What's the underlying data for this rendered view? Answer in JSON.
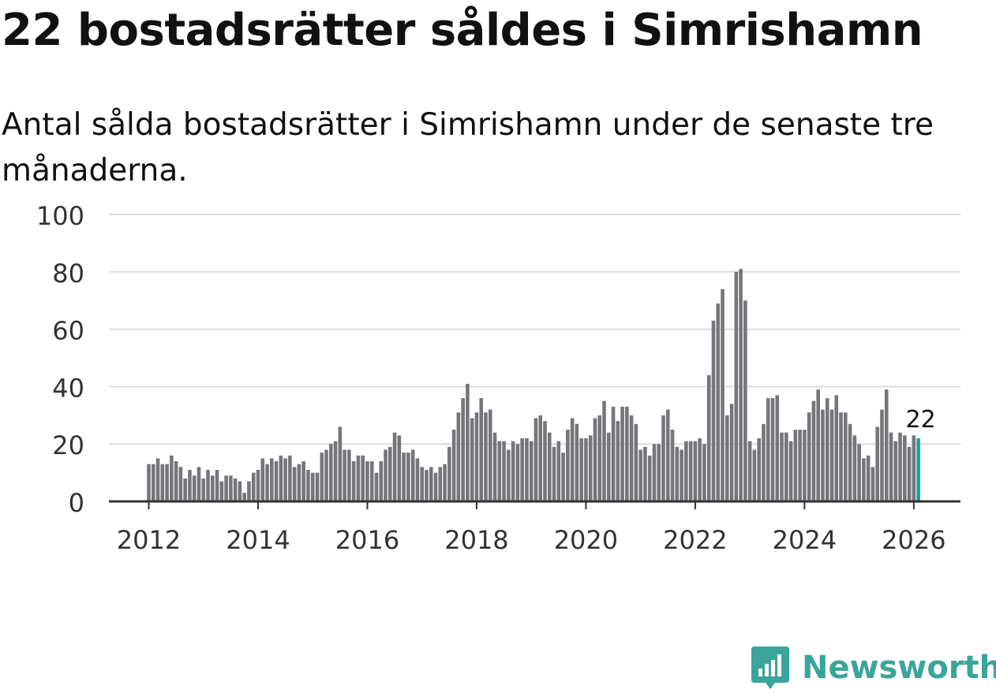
{
  "header": {
    "title": "22 bostadsrätter såldes i Simrishamn",
    "subtitle": "Antal sålda bostadsrätter i Simrishamn under de senaste tre månaderna."
  },
  "colors": {
    "bar": "#76757a",
    "highlight": "#1aa39a",
    "grid": "#dcdcdc",
    "axis": "#333333",
    "brand": "#3aa59a"
  },
  "brand": {
    "name": "Newsworthy",
    "icon": "newsworthy-logo-icon"
  },
  "chart_data": {
    "type": "bar",
    "title": "22 bostadsrätter såldes i Simrishamn",
    "subtitle": "Antal sålda bostadsrätter i Simrishamn under de senaste tre månaderna.",
    "xlabel": "",
    "ylabel": "",
    "ylim": [
      0,
      100
    ],
    "yticks": [
      0,
      20,
      40,
      60,
      80,
      100
    ],
    "xticks": [
      "2012",
      "2014",
      "2016",
      "2018",
      "2020",
      "2022",
      "2024",
      "2026"
    ],
    "grid": true,
    "start": "2012-01",
    "frequency": "monthly",
    "highlight_label": "22",
    "values": [
      13,
      13,
      15,
      13,
      13,
      16,
      14,
      12,
      8,
      11,
      9,
      12,
      8,
      11,
      9,
      11,
      7,
      9,
      9,
      8,
      7,
      3,
      7,
      10,
      11,
      15,
      13,
      15,
      14,
      16,
      15,
      16,
      12,
      13,
      14,
      11,
      10,
      10,
      17,
      18,
      20,
      21,
      26,
      18,
      18,
      14,
      16,
      16,
      14,
      14,
      10,
      14,
      18,
      19,
      24,
      23,
      17,
      17,
      18,
      15,
      12,
      11,
      12,
      10,
      12,
      13,
      19,
      25,
      31,
      36,
      41,
      29,
      31,
      36,
      31,
      32,
      24,
      21,
      21,
      18,
      21,
      20,
      22,
      22,
      21,
      29,
      30,
      28,
      24,
      19,
      21,
      17,
      25,
      29,
      27,
      22,
      22,
      23,
      29,
      30,
      35,
      24,
      33,
      28,
      33,
      33,
      30,
      27,
      18,
      19,
      16,
      20,
      20,
      30,
      32,
      25,
      19,
      18,
      21,
      21,
      21,
      22,
      20,
      44,
      63,
      69,
      74,
      30,
      34,
      80,
      81,
      70,
      21,
      18,
      22,
      27,
      36,
      36,
      37,
      24,
      24,
      21,
      25,
      25,
      25,
      31,
      35,
      39,
      32,
      36,
      32,
      37,
      31,
      31,
      27,
      23,
      20,
      15,
      16,
      12,
      26,
      32,
      39,
      24,
      21,
      24,
      23,
      19,
      23,
      22
    ]
  }
}
